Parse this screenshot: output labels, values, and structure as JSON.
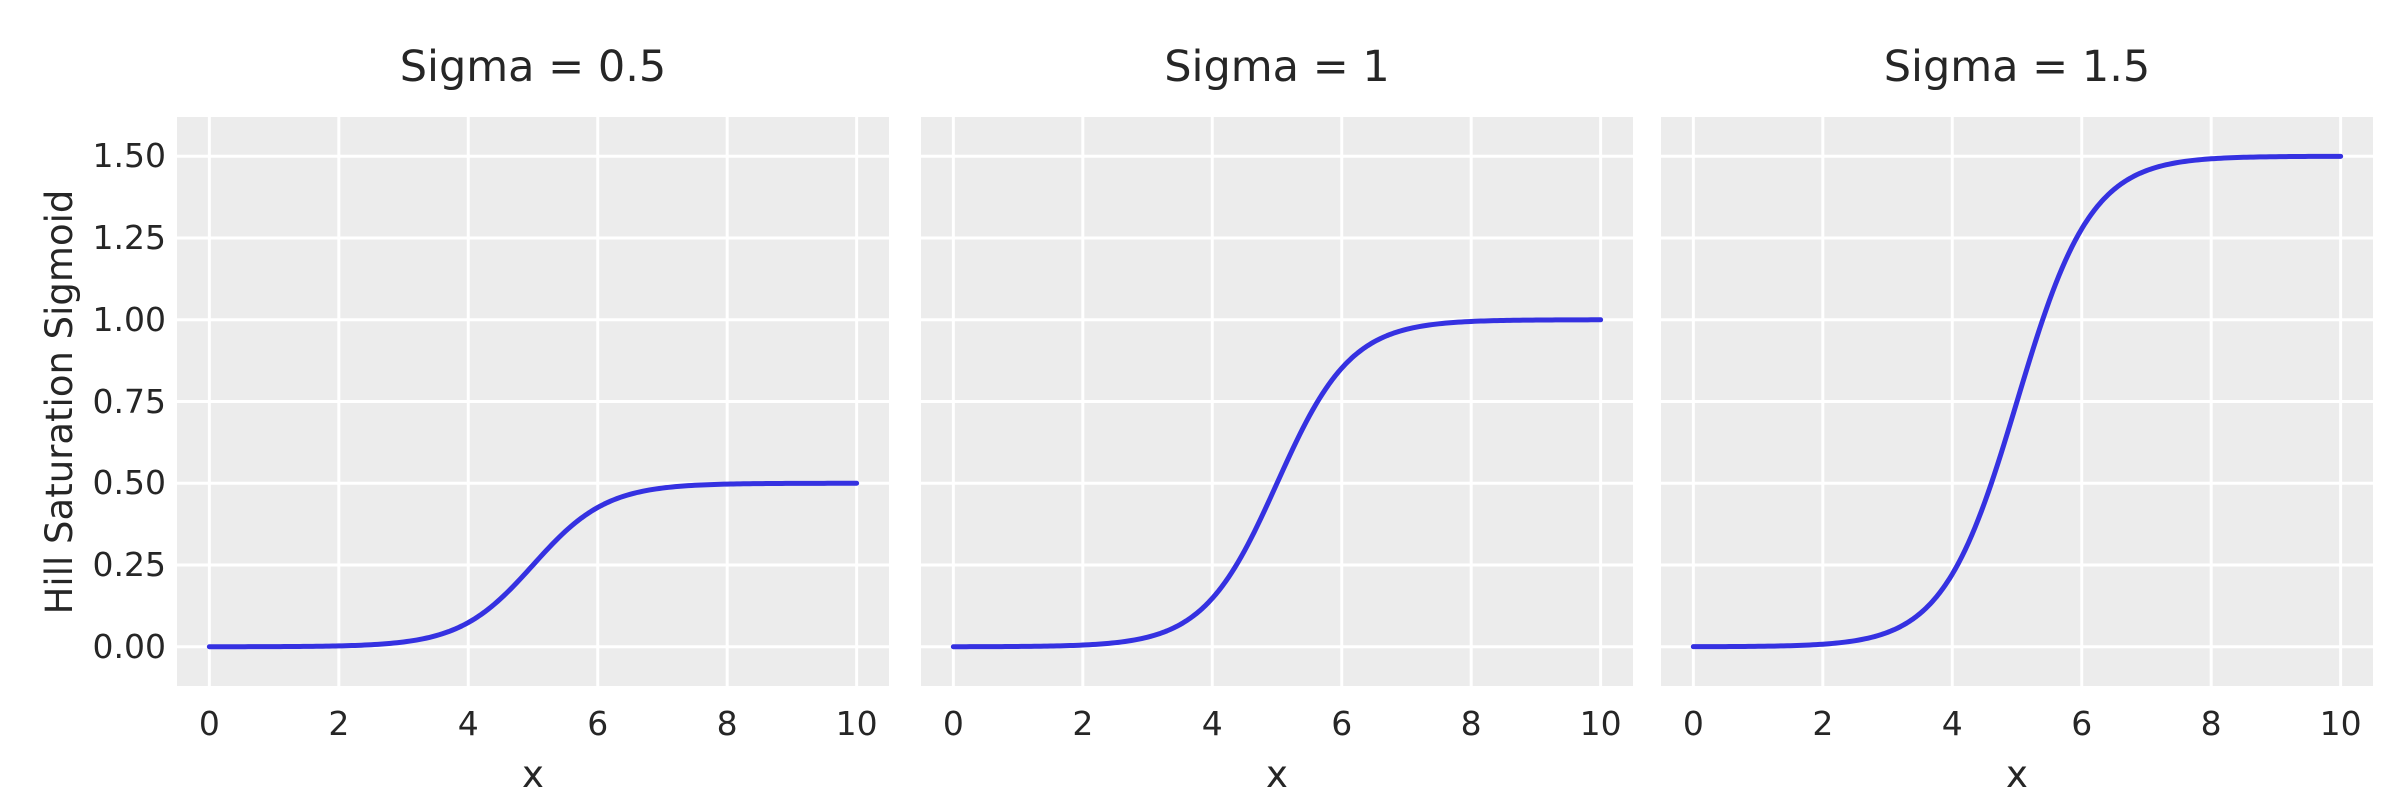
{
  "chart_data": {
    "type": "line",
    "layout": "1x3-subplots-shared-y",
    "title": "",
    "xlabel": "x",
    "ylabel": "Hill Saturation Sigmoid",
    "x_ticks": [
      0,
      2,
      4,
      6,
      8,
      10
    ],
    "y_ticks": [
      0,
      0.25,
      0.5,
      0.75,
      1.0,
      1.25,
      1.5
    ],
    "y_tick_labels": [
      "0.00",
      "0.25",
      "0.50",
      "0.75",
      "1.00",
      "1.25",
      "1.50"
    ],
    "xlim": [
      -0.5,
      10.5
    ],
    "ylim": [
      -0.12,
      1.62
    ],
    "grid": true,
    "legend": "none",
    "colors": {
      "line": "#3531E1",
      "axes_background": "#ECECEC",
      "grid": "#FFFFFF",
      "figure_background": "#FFFFFF",
      "text": "#262626"
    },
    "curve_model": {
      "formula": "y = sigma / (1 + exp(-k*(x - x0)))",
      "k": 1.75,
      "x0": 5
    },
    "subplots": [
      {
        "title": "Sigma = 0.5",
        "sigma": 0.5,
        "saturation": 0.5,
        "x": [
          0,
          0.5,
          1,
          1.5,
          2,
          2.5,
          3,
          3.5,
          4,
          4.5,
          5,
          5.5,
          6,
          6.5,
          7,
          7.5,
          8,
          8.5,
          9,
          9.5,
          10
        ],
        "y": [
          0.0001,
          0.0002,
          0.0005,
          0.0011,
          0.0026,
          0.0062,
          0.0147,
          0.0338,
          0.074,
          0.1471,
          0.25,
          0.3529,
          0.426,
          0.4662,
          0.4853,
          0.4938,
          0.4974,
          0.4989,
          0.4996,
          0.4998,
          0.4999
        ]
      },
      {
        "title": "Sigma = 1",
        "sigma": 1.0,
        "saturation": 1.0,
        "x": [
          0,
          0.5,
          1,
          1.5,
          2,
          2.5,
          3,
          3.5,
          4,
          4.5,
          5,
          5.5,
          6,
          6.5,
          7,
          7.5,
          8,
          8.5,
          9,
          9.5,
          10
        ],
        "y": [
          0.0002,
          0.0004,
          0.0009,
          0.0022,
          0.0052,
          0.0124,
          0.0293,
          0.0676,
          0.148,
          0.2942,
          0.5,
          0.7058,
          0.852,
          0.9324,
          0.9707,
          0.9876,
          0.9948,
          0.9978,
          0.9991,
          0.9996,
          0.9998
        ]
      },
      {
        "title": "Sigma = 1.5",
        "sigma": 1.5,
        "saturation": 1.5,
        "x": [
          0,
          0.5,
          1,
          1.5,
          2,
          2.5,
          3,
          3.5,
          4,
          4.5,
          5,
          5.5,
          6,
          6.5,
          7,
          7.5,
          8,
          8.5,
          9,
          9.5,
          10
        ],
        "y": [
          0.0002,
          0.0006,
          0.0014,
          0.0033,
          0.0078,
          0.0187,
          0.044,
          0.1013,
          0.2221,
          0.4413,
          0.75,
          1.0587,
          1.2779,
          1.3987,
          1.456,
          1.4813,
          1.4922,
          1.4967,
          1.4986,
          1.4994,
          1.4998
        ]
      }
    ]
  }
}
